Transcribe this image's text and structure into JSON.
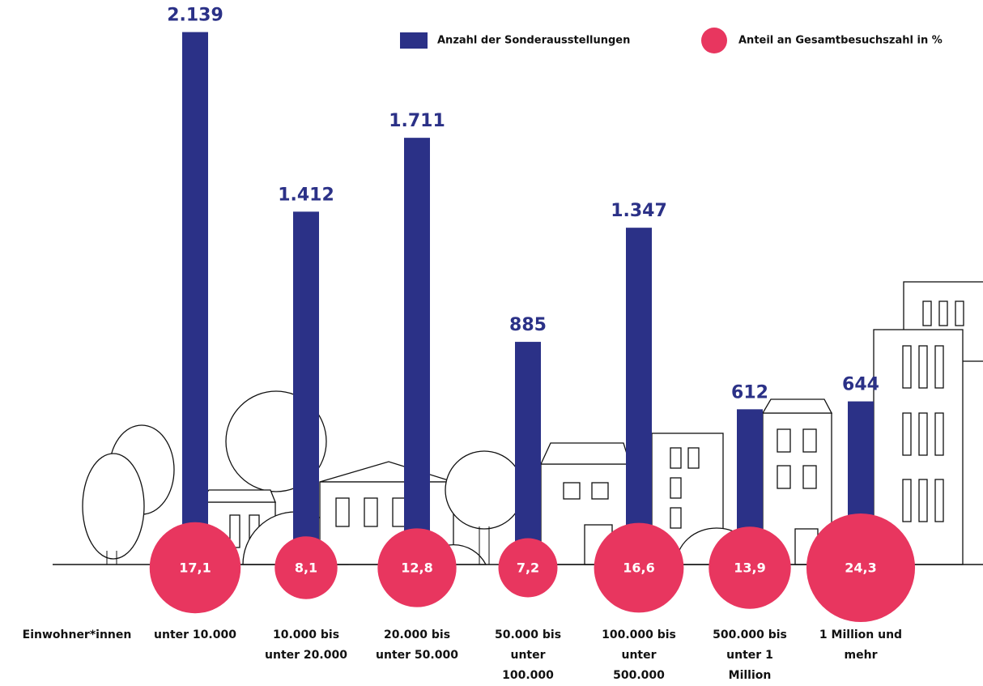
{
  "chart_data": {
    "type": "bar",
    "x_label": "Einwohner*innen",
    "categories": [
      "unter 10.000",
      "10.000 bis unter 20.000",
      "20.000 bis unter 50.000",
      "50.000 bis unter 100.000",
      "100.000 bis unter 500.000",
      "500.000 bis unter 1 Million",
      "1 Million und mehr"
    ],
    "series": [
      {
        "name": "Anzahl der Sonderausstellungen",
        "color": "#2b3187",
        "type": "bar",
        "values": [
          2139,
          1412,
          1711,
          885,
          1347,
          612,
          644
        ],
        "value_labels": [
          "2.139",
          "1.412",
          "1.711",
          "885",
          "1.347",
          "612",
          "644"
        ]
      },
      {
        "name": "Anteil an Gesamtbesuchszahl in %",
        "color": "#e8365f",
        "type": "bubble",
        "values": [
          17.1,
          8.1,
          12.8,
          7.2,
          16.6,
          13.9,
          24.3
        ],
        "value_labels": [
          "17,1",
          "8,1",
          "12,8",
          "7,2",
          "16,6",
          "13,9",
          "24,3"
        ]
      }
    ]
  }
}
